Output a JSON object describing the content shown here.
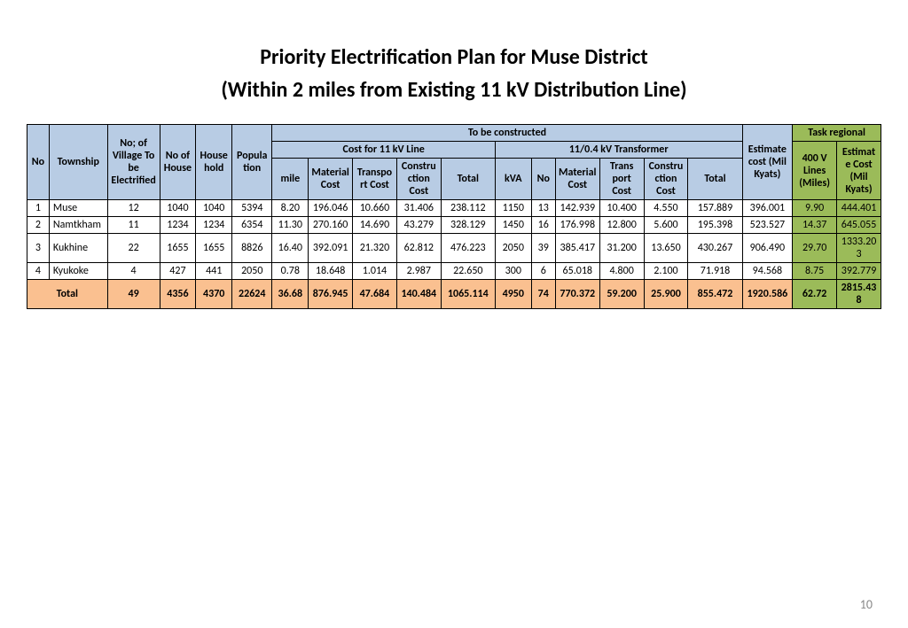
{
  "title_line1": "Priority Electrification Plan for Muse District",
  "title_line2": "(Within  2  miles from Existing  11  kV  Distribution  Line)",
  "page_number": "10",
  "headers": {
    "no": "No",
    "township": "Township",
    "village": "No; of Village To be Electrified",
    "house": "No of House",
    "household": "Household",
    "population": "Population",
    "to_be_constructed": "To be constructed",
    "cost_11kv": "Cost for 11 kV Line",
    "transformer": "11/0.4 kV Transformer",
    "estimate_cost": "Estimate cost (Mil Kyats)",
    "task_regional": "Task regional",
    "mile": "mile",
    "material_cost": "Material Cost",
    "transport_cost": "Transport Cost",
    "construction_cost": "Constru ction Cost",
    "total": "Total",
    "kva": "kVA",
    "t_no": "No",
    "t_material": "Material Cost",
    "t_transport": "Trans port Cost",
    "t_construction": "Constru ction Cost",
    "t_total": "Total",
    "lines_400v": "400 V Lines (Miles)",
    "task_estimate": "Estimate Cost (Mil Kyats)"
  },
  "rows": [
    {
      "no": "1",
      "township": "Muse",
      "village": "12",
      "house": "1040",
      "household": "1040",
      "population": "5394",
      "mile": "8.20",
      "mat": "196.046",
      "trans": "10.660",
      "con": "31.406",
      "total": "238.112",
      "kva": "1150",
      "tno": "13",
      "tmat": "142.939",
      "ttrans": "10.400",
      "tcon": "4.550",
      "ttotal": "157.889",
      "est": "396.001",
      "lines400": "9.90",
      "taskest": "444.401"
    },
    {
      "no": "2",
      "township": "Namtkham",
      "village": "11",
      "house": "1234",
      "household": "1234",
      "population": "6354",
      "mile": "11.30",
      "mat": "270.160",
      "trans": "14.690",
      "con": "43.279",
      "total": "328.129",
      "kva": "1450",
      "tno": "16",
      "tmat": "176.998",
      "ttrans": "12.800",
      "tcon": "5.600",
      "ttotal": "195.398",
      "est": "523.527",
      "lines400": "14.37",
      "taskest": "645.055"
    },
    {
      "no": "3",
      "township": "Kukhine",
      "village": "22",
      "house": "1655",
      "household": "1655",
      "population": "8826",
      "mile": "16.40",
      "mat": "392.091",
      "trans": "21.320",
      "con": "62.812",
      "total": "476.223",
      "kva": "2050",
      "tno": "39",
      "tmat": "385.417",
      "ttrans": "31.200",
      "tcon": "13.650",
      "ttotal": "430.267",
      "est": "906.490",
      "lines400": "29.70",
      "taskest": "1333.203"
    },
    {
      "no": "4",
      "township": "Kyukoke",
      "village": "4",
      "house": "427",
      "household": "441",
      "population": "2050",
      "mile": "0.78",
      "mat": "18.648",
      "trans": "1.014",
      "con": "2.987",
      "total": "22.650",
      "kva": "300",
      "tno": "6",
      "tmat": "65.018",
      "ttrans": "4.800",
      "tcon": "2.100",
      "ttotal": "71.918",
      "est": "94.568",
      "lines400": "8.75",
      "taskest": "392.779"
    }
  ],
  "total": {
    "label": "Total",
    "village": "49",
    "house": "4356",
    "household": "4370",
    "population": "22624",
    "mile": "36.68",
    "mat": "876.945",
    "trans": "47.684",
    "con": "140.484",
    "total": "1065.114",
    "kva": "4950",
    "tno": "74",
    "tmat": "770.372",
    "ttrans": "59.200",
    "tcon": "25.900",
    "ttotal": "855.472",
    "est": "1920.586",
    "lines400": "62.72",
    "taskest": "2815.438"
  },
  "colors": {
    "header_blue": "#b8cce4",
    "header_green": "#9bbb59",
    "total_orange": "#fac090",
    "border": "#000000",
    "background": "#ffffff"
  }
}
